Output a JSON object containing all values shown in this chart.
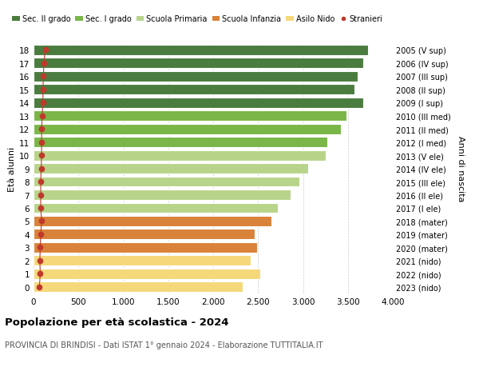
{
  "ages": [
    18,
    17,
    16,
    15,
    14,
    13,
    12,
    11,
    10,
    9,
    8,
    7,
    6,
    5,
    4,
    3,
    2,
    1,
    0
  ],
  "right_labels": [
    "2005 (V sup)",
    "2006 (IV sup)",
    "2007 (III sup)",
    "2008 (II sup)",
    "2009 (I sup)",
    "2010 (III med)",
    "2011 (II med)",
    "2012 (I med)",
    "2013 (V ele)",
    "2014 (IV ele)",
    "2015 (III ele)",
    "2016 (II ele)",
    "2017 (I ele)",
    "2018 (mater)",
    "2019 (mater)",
    "2020 (mater)",
    "2021 (nido)",
    "2022 (nido)",
    "2023 (nido)"
  ],
  "bar_values": [
    3720,
    3670,
    3610,
    3570,
    3670,
    3480,
    3420,
    3270,
    3250,
    3060,
    2960,
    2860,
    2720,
    2650,
    2460,
    2490,
    2420,
    2520,
    2330
  ],
  "stranieri_values": [
    130,
    115,
    110,
    105,
    105,
    95,
    90,
    90,
    90,
    85,
    80,
    80,
    80,
    90,
    80,
    75,
    70,
    75,
    65
  ],
  "bar_colors": [
    "#4a7c3f",
    "#4a7c3f",
    "#4a7c3f",
    "#4a7c3f",
    "#4a7c3f",
    "#7ab648",
    "#7ab648",
    "#7ab648",
    "#b8d48a",
    "#b8d48a",
    "#b8d48a",
    "#b8d48a",
    "#b8d48a",
    "#d9823a",
    "#d9823a",
    "#d9823a",
    "#f5d87a",
    "#f5d87a",
    "#f5d87a"
  ],
  "legend_labels": [
    "Sec. II grado",
    "Sec. I grado",
    "Scuola Primaria",
    "Scuola Infanzia",
    "Asilo Nido",
    "Stranieri"
  ],
  "legend_colors": [
    "#4a7c3f",
    "#7ab648",
    "#b8d48a",
    "#d9823a",
    "#f5d87a",
    "#c0392b"
  ],
  "stranieri_color": "#c0392b",
  "title": "Popolazione per età scolastica - 2024",
  "subtitle": "PROVINCIA DI BRINDISI - Dati ISTAT 1° gennaio 2024 - Elaborazione TUTTITALIA.IT",
  "ylabel_left": "Età alunni",
  "ylabel_right": "Anni di nascita",
  "xlim": [
    0,
    4000
  ],
  "xticks": [
    0,
    500,
    1000,
    1500,
    2000,
    2500,
    3000,
    3500,
    4000
  ],
  "xtick_labels": [
    "0",
    "500",
    "1.000",
    "1.500",
    "2.000",
    "2.500",
    "3.000",
    "3.500",
    "4.000"
  ],
  "bar_height": 0.78,
  "bg_color": "#ffffff",
  "grid_color": "#cccccc"
}
